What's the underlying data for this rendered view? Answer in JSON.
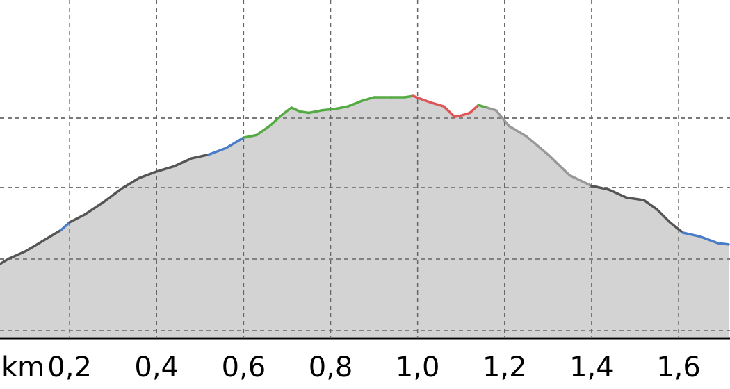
{
  "chart_data": {
    "type": "area",
    "title": "",
    "xlabel": "",
    "ylabel": "",
    "x_unit_label": "km",
    "x_ticks": [
      0.2,
      0.4,
      0.6,
      0.8,
      1.0,
      1.2,
      1.4,
      1.6
    ],
    "x_tick_labels": [
      "0,2",
      "0,4",
      "0,6",
      "0,8",
      "1,0",
      "1,2",
      "1,4",
      "1,6"
    ],
    "xlim": [
      0.04,
      1.715
    ],
    "y_gridlines": 4,
    "grid": true,
    "fill_color": "#d3d3d3",
    "segment_colors": {
      "flat": "#555555",
      "descent": "#999999",
      "gentle": "#4a7cc7",
      "climb": "#55aa44",
      "steep": "#dd5555"
    },
    "profile": [
      {
        "x": 0.04,
        "y": 0.28,
        "c": "flat"
      },
      {
        "x": 0.06,
        "y": 0.3,
        "c": "flat"
      },
      {
        "x": 0.1,
        "y": 0.33,
        "c": "flat"
      },
      {
        "x": 0.14,
        "y": 0.37,
        "c": "flat"
      },
      {
        "x": 0.18,
        "y": 0.41,
        "c": "flat"
      },
      {
        "x": 0.2,
        "y": 0.44,
        "c": "gentle"
      },
      {
        "x": 0.235,
        "y": 0.47,
        "c": "flat"
      },
      {
        "x": 0.28,
        "y": 0.52,
        "c": "flat"
      },
      {
        "x": 0.32,
        "y": 0.57,
        "c": "flat"
      },
      {
        "x": 0.36,
        "y": 0.61,
        "c": "flat"
      },
      {
        "x": 0.4,
        "y": 0.635,
        "c": "flat"
      },
      {
        "x": 0.44,
        "y": 0.655,
        "c": "flat"
      },
      {
        "x": 0.48,
        "y": 0.685,
        "c": "flat"
      },
      {
        "x": 0.52,
        "y": 0.7,
        "c": "flat"
      },
      {
        "x": 0.56,
        "y": 0.725,
        "c": "gentle"
      },
      {
        "x": 0.6,
        "y": 0.765,
        "c": "gentle"
      },
      {
        "x": 0.63,
        "y": 0.775,
        "c": "climb"
      },
      {
        "x": 0.66,
        "y": 0.81,
        "c": "climb"
      },
      {
        "x": 0.69,
        "y": 0.855,
        "c": "climb"
      },
      {
        "x": 0.71,
        "y": 0.88,
        "c": "climb"
      },
      {
        "x": 0.73,
        "y": 0.865,
        "c": "climb"
      },
      {
        "x": 0.75,
        "y": 0.86,
        "c": "climb"
      },
      {
        "x": 0.78,
        "y": 0.87,
        "c": "climb"
      },
      {
        "x": 0.81,
        "y": 0.875,
        "c": "climb"
      },
      {
        "x": 0.84,
        "y": 0.885,
        "c": "climb"
      },
      {
        "x": 0.87,
        "y": 0.905,
        "c": "climb"
      },
      {
        "x": 0.9,
        "y": 0.92,
        "c": "climb"
      },
      {
        "x": 0.94,
        "y": 0.92,
        "c": "climb"
      },
      {
        "x": 0.97,
        "y": 0.92,
        "c": "climb"
      },
      {
        "x": 0.99,
        "y": 0.925,
        "c": "climb"
      },
      {
        "x": 1.005,
        "y": 0.915,
        "c": "steep"
      },
      {
        "x": 1.03,
        "y": 0.9,
        "c": "steep"
      },
      {
        "x": 1.06,
        "y": 0.885,
        "c": "steep"
      },
      {
        "x": 1.085,
        "y": 0.845,
        "c": "steep"
      },
      {
        "x": 1.1,
        "y": 0.85,
        "c": "steep"
      },
      {
        "x": 1.12,
        "y": 0.86,
        "c": "steep"
      },
      {
        "x": 1.14,
        "y": 0.89,
        "c": "steep"
      },
      {
        "x": 1.16,
        "y": 0.88,
        "c": "climb"
      },
      {
        "x": 1.18,
        "y": 0.87,
        "c": "descent"
      },
      {
        "x": 1.21,
        "y": 0.81,
        "c": "descent"
      },
      {
        "x": 1.25,
        "y": 0.77,
        "c": "descent"
      },
      {
        "x": 1.3,
        "y": 0.7,
        "c": "descent"
      },
      {
        "x": 1.35,
        "y": 0.62,
        "c": "descent"
      },
      {
        "x": 1.4,
        "y": 0.58,
        "c": "descent"
      },
      {
        "x": 1.44,
        "y": 0.565,
        "c": "flat"
      },
      {
        "x": 1.48,
        "y": 0.535,
        "c": "flat"
      },
      {
        "x": 1.52,
        "y": 0.525,
        "c": "flat"
      },
      {
        "x": 1.55,
        "y": 0.49,
        "c": "flat"
      },
      {
        "x": 1.58,
        "y": 0.44,
        "c": "flat"
      },
      {
        "x": 1.61,
        "y": 0.4,
        "c": "flat"
      },
      {
        "x": 1.65,
        "y": 0.385,
        "c": "gentle"
      },
      {
        "x": 1.69,
        "y": 0.36,
        "c": "gentle"
      },
      {
        "x": 1.715,
        "y": 0.355,
        "c": "gentle"
      }
    ]
  }
}
